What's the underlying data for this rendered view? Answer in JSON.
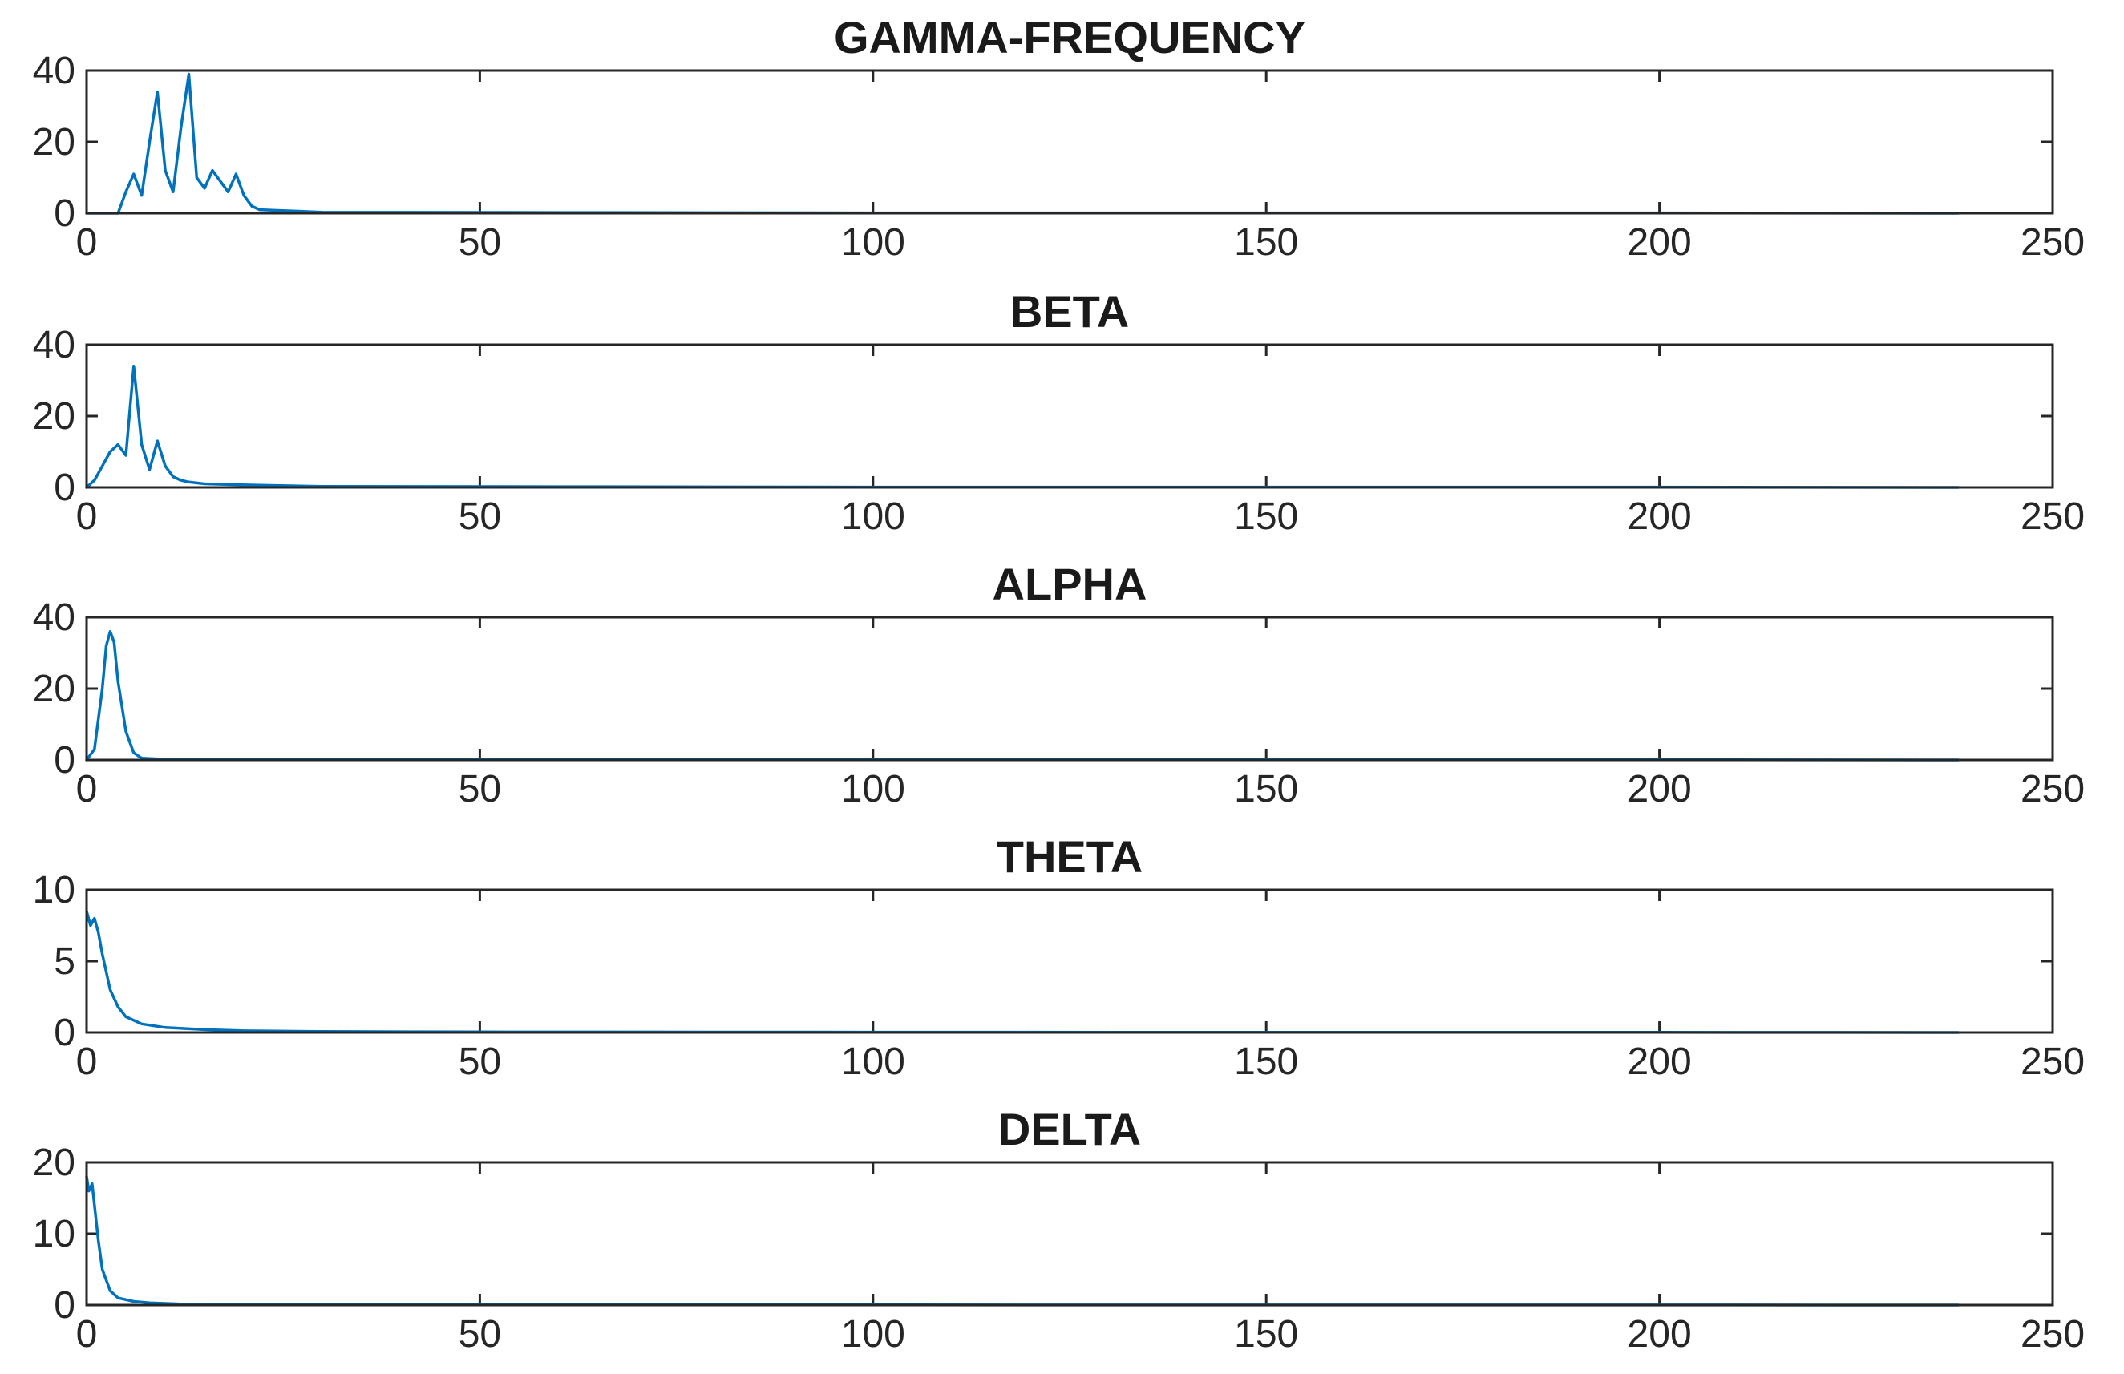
{
  "chart_data": [
    {
      "type": "line",
      "title": "GAMMA-FREQUENCY",
      "xlim": [
        0,
        250
      ],
      "ylim": [
        0,
        40
      ],
      "xticks": [
        "0",
        "50",
        "100",
        "150",
        "200",
        "250"
      ],
      "yticks": [
        "0",
        "20",
        "40"
      ],
      "grid": false,
      "color": "#0072BD",
      "x": [
        0,
        4,
        5,
        6,
        7,
        8,
        9,
        10,
        11,
        12,
        13,
        14,
        15,
        16,
        17,
        18,
        19,
        20,
        21,
        22,
        30,
        60,
        100,
        150,
        200,
        238
      ],
      "y": [
        0,
        0,
        6,
        11,
        5,
        20,
        34,
        12,
        6,
        24,
        39,
        10,
        7,
        12,
        9,
        6,
        11,
        5,
        2,
        1,
        0.3,
        0.2,
        0.1,
        0.1,
        0.1,
        0
      ]
    },
    {
      "type": "line",
      "title": "BETA",
      "xlim": [
        0,
        250
      ],
      "ylim": [
        0,
        40
      ],
      "xticks": [
        "0",
        "50",
        "100",
        "150",
        "200",
        "250"
      ],
      "yticks": [
        "0",
        "20",
        "40"
      ],
      "grid": false,
      "color": "#0072BD",
      "x": [
        0,
        1,
        2,
        3,
        4,
        5,
        6,
        7,
        8,
        9,
        10,
        11,
        12,
        13,
        15,
        18,
        22,
        30,
        60,
        100,
        150,
        200,
        238
      ],
      "y": [
        0,
        2,
        6,
        10,
        12,
        9,
        34,
        12,
        5,
        13,
        6,
        3,
        2,
        1.5,
        1,
        0.8,
        0.6,
        0.3,
        0.2,
        0.1,
        0.1,
        0.1,
        0
      ]
    },
    {
      "type": "line",
      "title": "ALPHA",
      "xlim": [
        0,
        250
      ],
      "ylim": [
        0,
        40
      ],
      "xticks": [
        "0",
        "50",
        "100",
        "150",
        "200",
        "250"
      ],
      "yticks": [
        "0",
        "20",
        "40"
      ],
      "grid": false,
      "color": "#0072BD",
      "x": [
        0,
        1,
        2,
        2.5,
        3,
        3.5,
        4,
        5,
        6,
        7,
        10,
        20,
        50,
        100,
        150,
        200,
        238
      ],
      "y": [
        0,
        3,
        20,
        32,
        36,
        33,
        22,
        8,
        2,
        0.5,
        0.2,
        0.1,
        0.1,
        0.1,
        0.1,
        0.1,
        0
      ]
    },
    {
      "type": "line",
      "title": "THETA",
      "xlim": [
        0,
        250
      ],
      "ylim": [
        0,
        10
      ],
      "xticks": [
        "0",
        "50",
        "100",
        "150",
        "200",
        "250"
      ],
      "yticks": [
        "0",
        "5",
        "10"
      ],
      "grid": false,
      "color": "#0072BD",
      "x": [
        0,
        0.5,
        1,
        1.5,
        2,
        3,
        4,
        5,
        7,
        10,
        15,
        20,
        30,
        50,
        100,
        150,
        200,
        238
      ],
      "y": [
        8.5,
        7.5,
        8,
        7,
        5.5,
        3,
        1.8,
        1.1,
        0.6,
        0.35,
        0.2,
        0.12,
        0.07,
        0.04,
        0.02,
        0.01,
        0.01,
        0
      ]
    },
    {
      "type": "line",
      "title": "DELTA",
      "xlim": [
        0,
        250
      ],
      "ylim": [
        0,
        20
      ],
      "xticks": [
        "0",
        "50",
        "100",
        "150",
        "200",
        "250"
      ],
      "yticks": [
        "0",
        "10",
        "20"
      ],
      "grid": false,
      "color": "#0072BD",
      "x": [
        0,
        0.3,
        0.7,
        1,
        1.5,
        2,
        3,
        4,
        6,
        8,
        12,
        20,
        50,
        100,
        150,
        200,
        238
      ],
      "y": [
        18,
        16,
        17,
        14,
        9,
        5,
        2,
        1,
        0.5,
        0.3,
        0.15,
        0.08,
        0.04,
        0.02,
        0.01,
        0.01,
        0
      ]
    }
  ]
}
